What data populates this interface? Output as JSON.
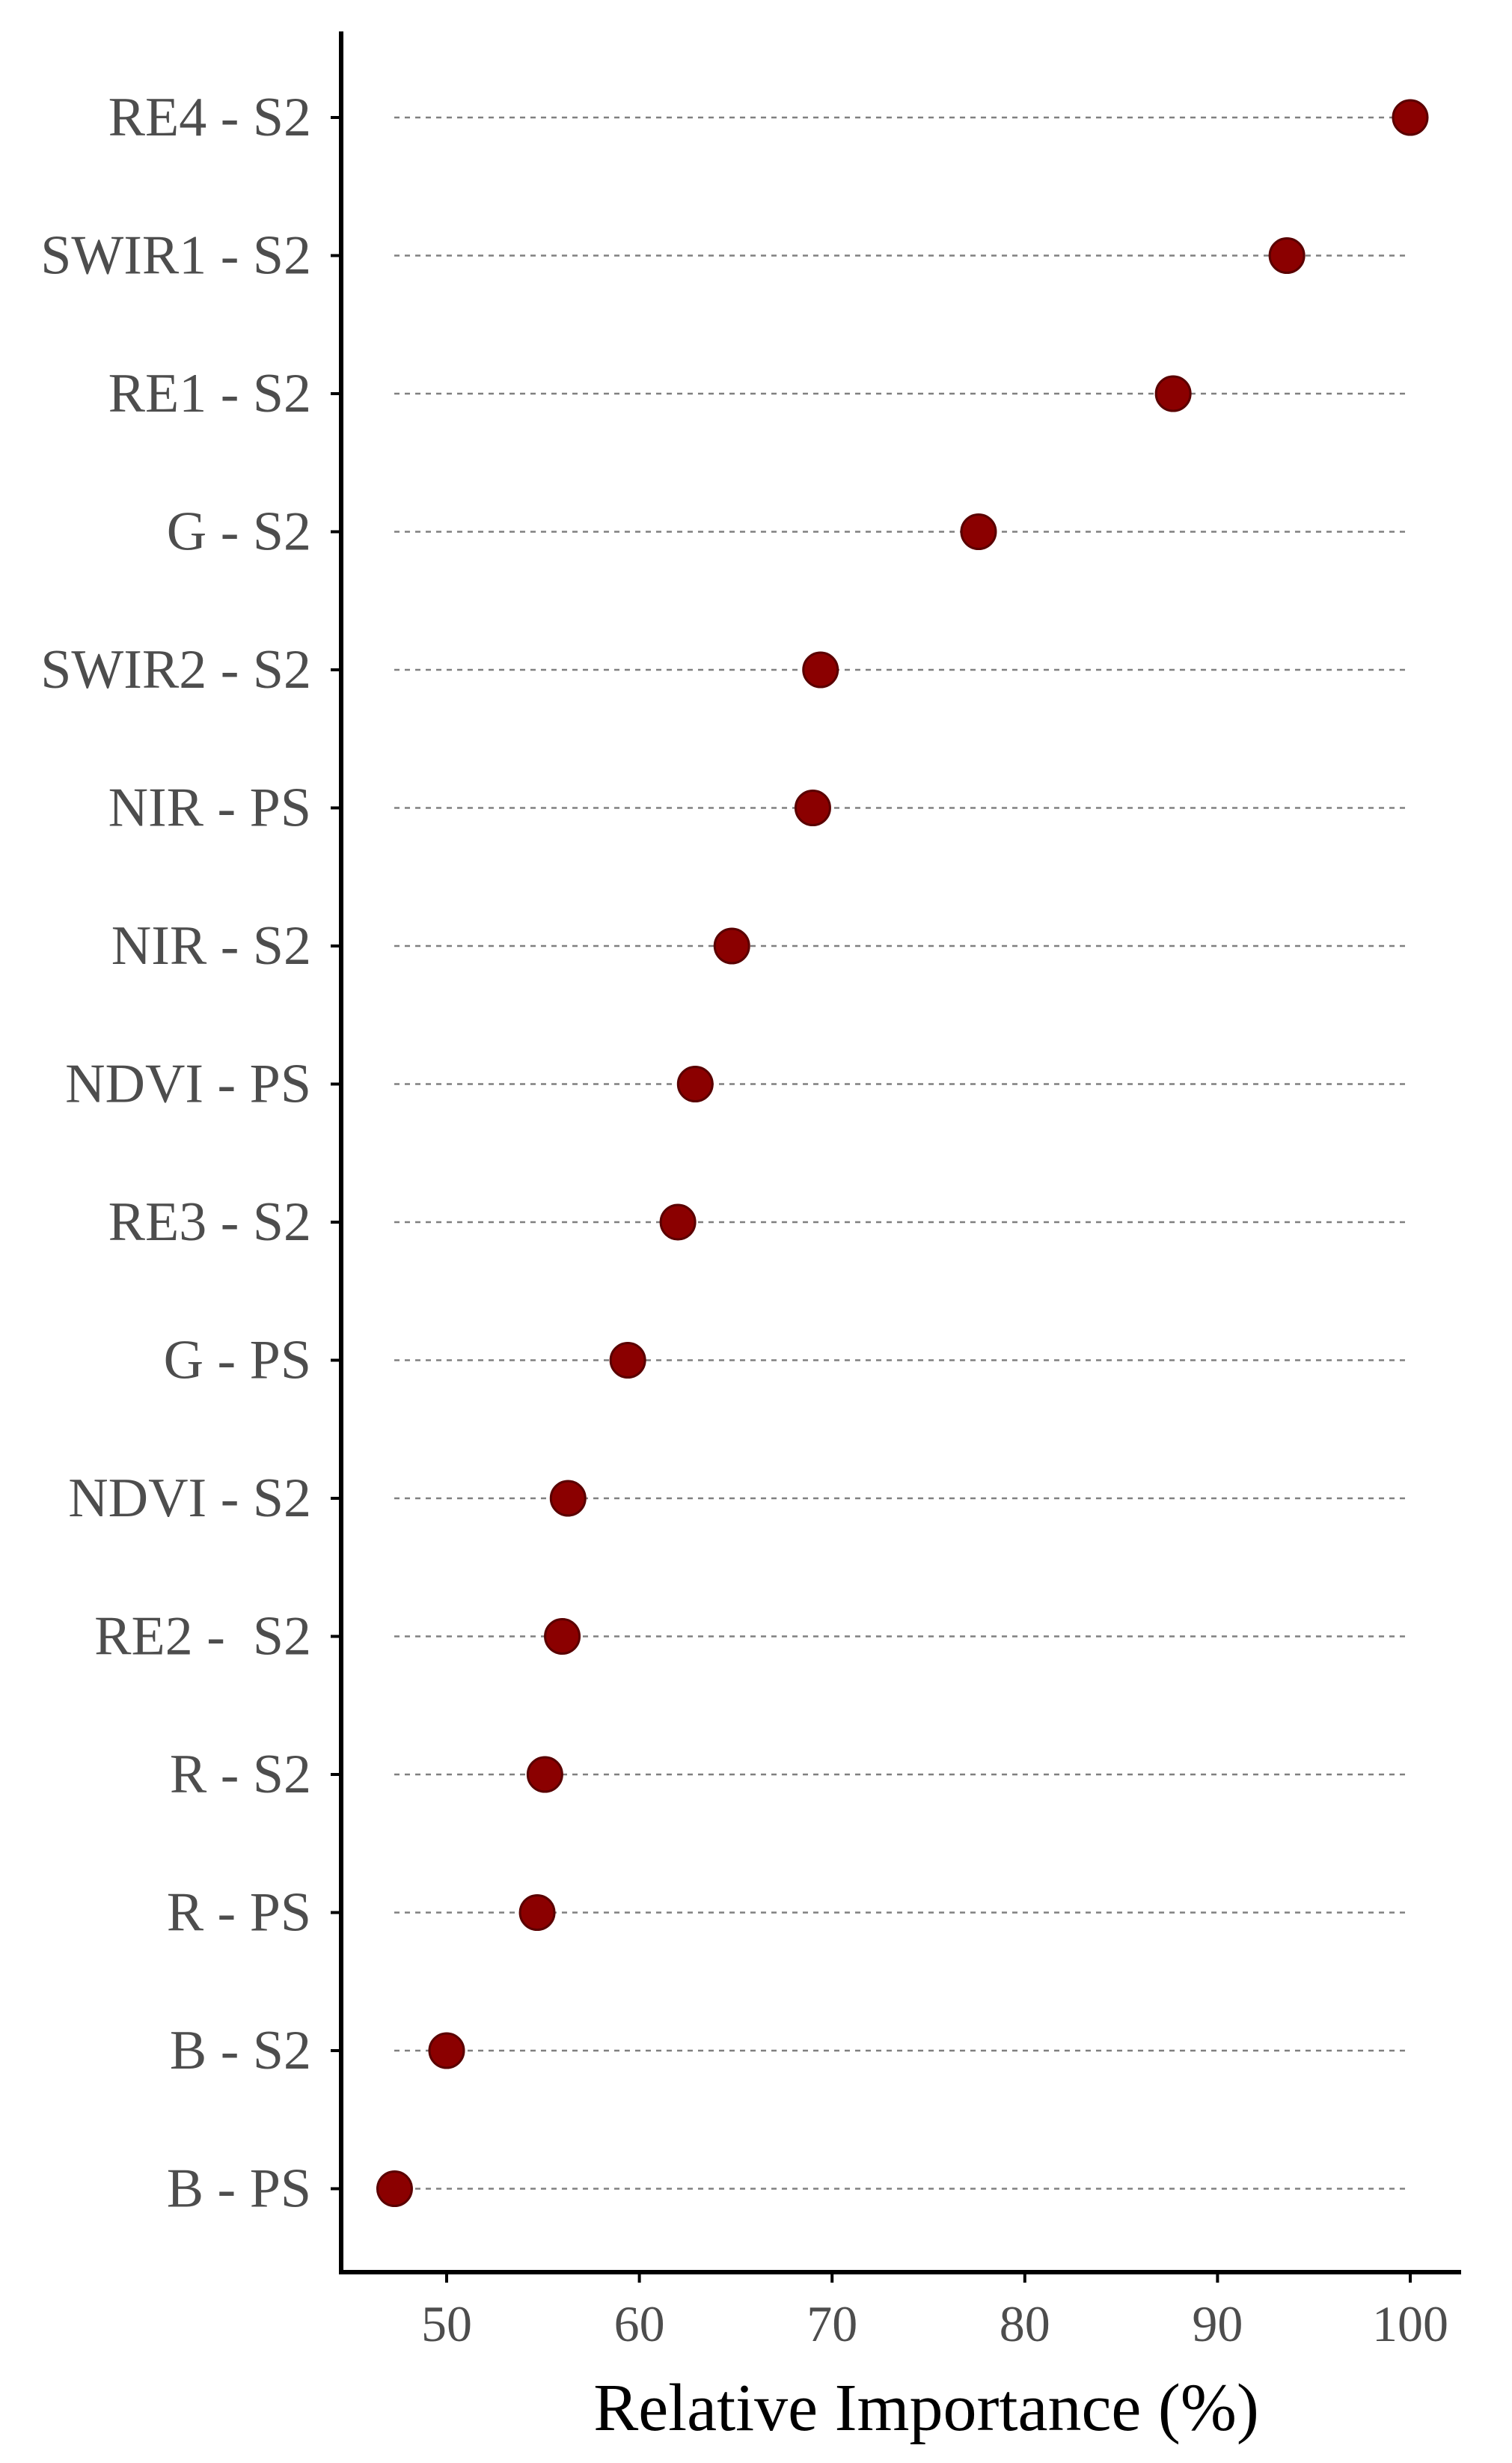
{
  "chart_data": {
    "type": "scatter",
    "title": "",
    "xlabel": "Relative Importance (%)",
    "ylabel": "",
    "xlim": [
      44.5,
      103
    ],
    "xticks": [
      50,
      60,
      70,
      80,
      90,
      100
    ],
    "xtick_labels": [
      "50",
      "60",
      "70",
      "80",
      "90",
      "100"
    ],
    "grid": false,
    "legend": "none",
    "point_color": "#8b0000",
    "points": [
      {
        "label": "RE4 - S2",
        "value": 100
      },
      {
        "label": "SWIR1 - S2",
        "value": 93.6
      },
      {
        "label": "RE1 - S2",
        "value": 87.7
      },
      {
        "label": "G - S2",
        "value": 77.6
      },
      {
        "label": "SWIR2 - S2",
        "value": 69.4
      },
      {
        "label": "NIR - PS",
        "value": 69.0
      },
      {
        "label": "NIR - S2",
        "value": 64.8
      },
      {
        "label": "NDVI - PS",
        "value": 62.9
      },
      {
        "label": "RE3 - S2",
        "value": 62.0
      },
      {
        "label": "G - PS",
        "value": 59.4
      },
      {
        "label": "NDVI - S2",
        "value": 56.3
      },
      {
        "label": "RE2 -  S2",
        "value": 56.0
      },
      {
        "label": "R - S2",
        "value": 55.1
      },
      {
        "label": "R - PS",
        "value": 54.7
      },
      {
        "label": "B - S2",
        "value": 50.0
      },
      {
        "label": "B - PS",
        "value": 47.3
      }
    ]
  }
}
